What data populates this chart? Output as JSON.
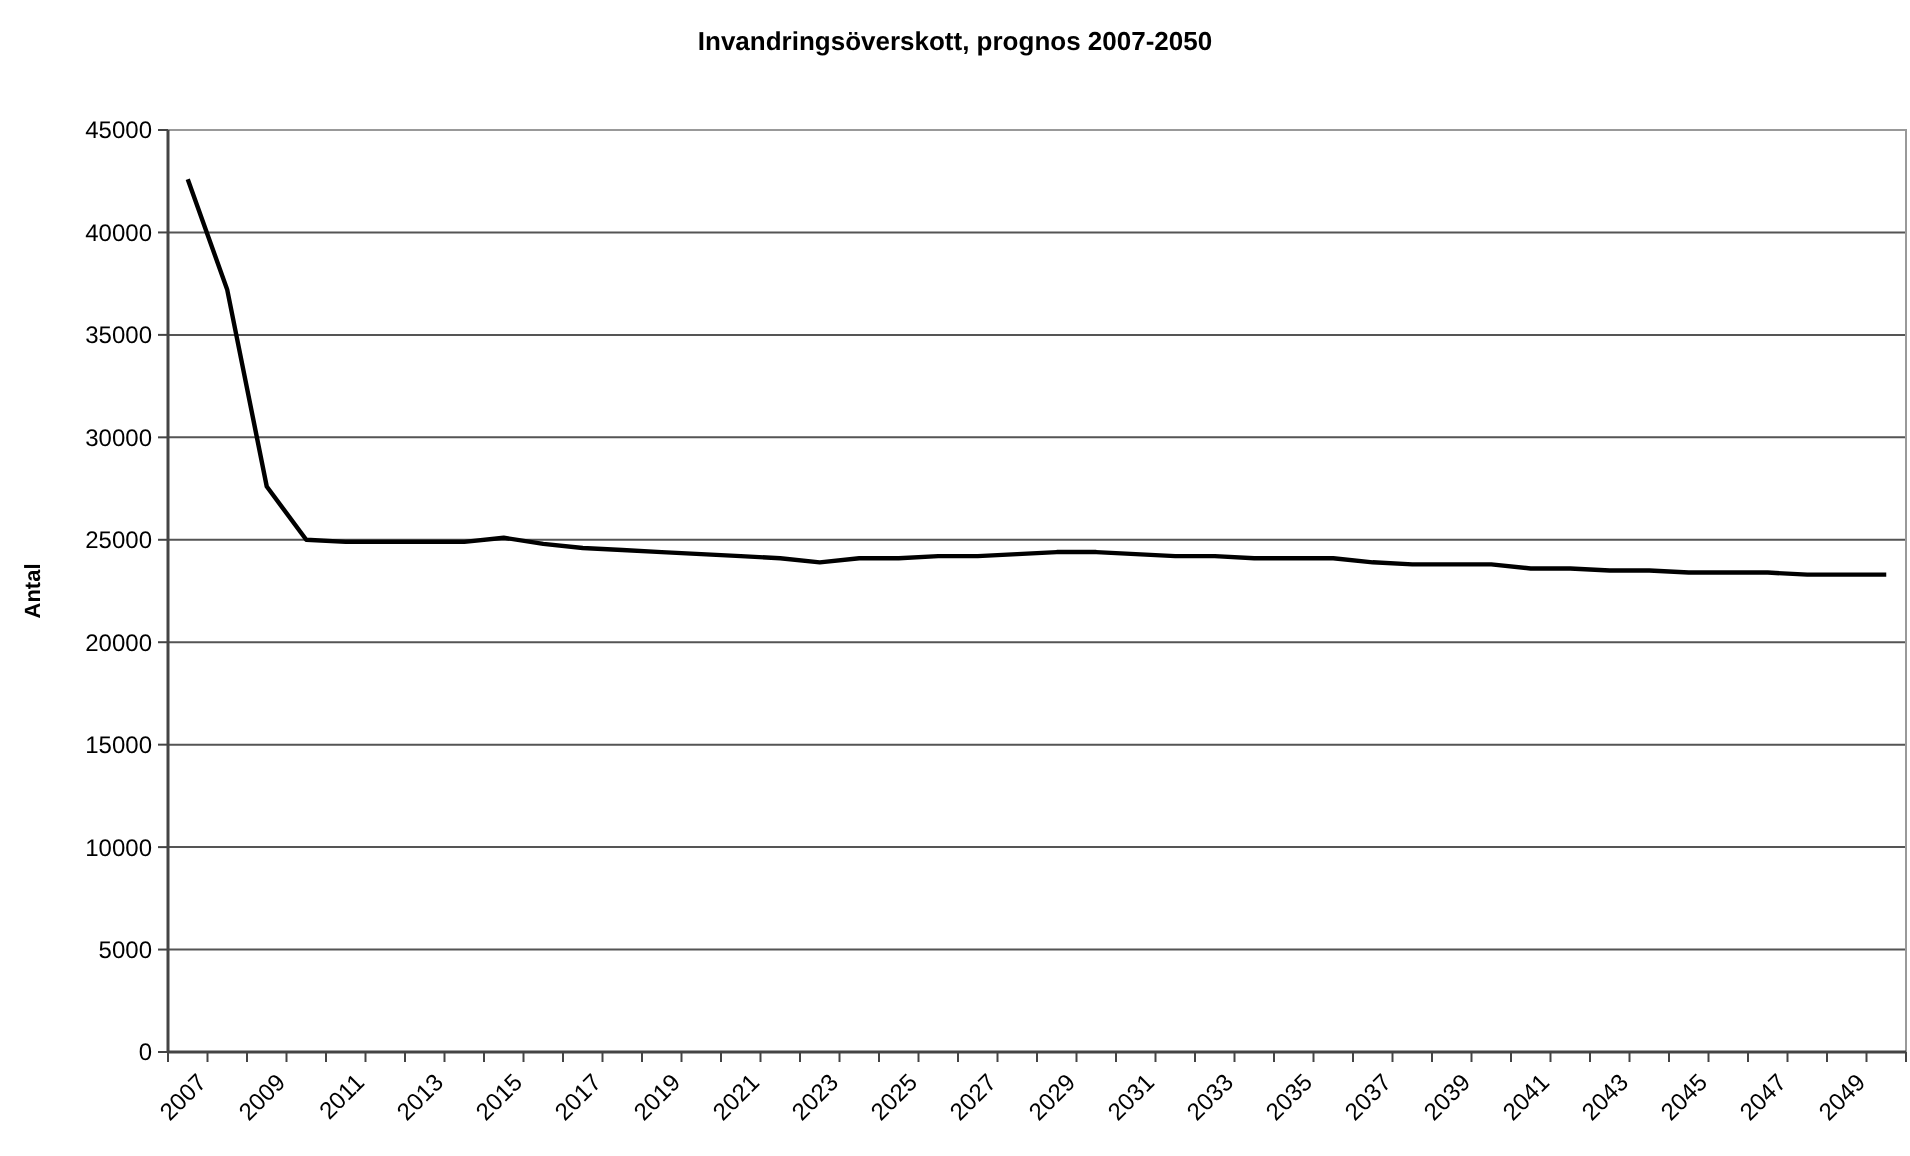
{
  "chart_data": {
    "type": "line",
    "title": "Invandringsöverskott, prognos 2007-2050",
    "ylabel": "Antal",
    "categories": [
      "2007",
      null,
      "2009",
      null,
      "2011",
      null,
      "2013",
      null,
      "2015",
      null,
      "2017",
      null,
      "2019",
      null,
      "2021",
      null,
      "2023",
      null,
      "2025",
      null,
      "2027",
      null,
      "2029",
      null,
      "2031",
      null,
      "2033",
      null,
      "2035",
      null,
      "2037",
      null,
      "2039",
      null,
      "2041",
      null,
      "2043",
      null,
      "2045",
      null,
      "2047",
      null,
      "2049",
      null
    ],
    "series": [
      {
        "color": "#000000",
        "values": [
          42600,
          37200,
          27600,
          25000,
          24900,
          24900,
          24900,
          24900,
          25100,
          24800,
          24600,
          24500,
          24400,
          24300,
          24200,
          24100,
          23900,
          24100,
          24100,
          24200,
          24200,
          24300,
          24400,
          24400,
          24300,
          24200,
          24200,
          24100,
          24100,
          24100,
          23900,
          23800,
          23800,
          23800,
          23600,
          23600,
          23500,
          23500,
          23400,
          23400,
          23400,
          23300,
          23300,
          23300
        ]
      }
    ],
    "ylim": [
      0,
      45000
    ],
    "yticks": [
      0,
      5000,
      10000,
      15000,
      20000,
      25000,
      30000,
      35000,
      40000,
      45000
    ],
    "grid": "y",
    "marker": "none",
    "line_style": "solid"
  }
}
